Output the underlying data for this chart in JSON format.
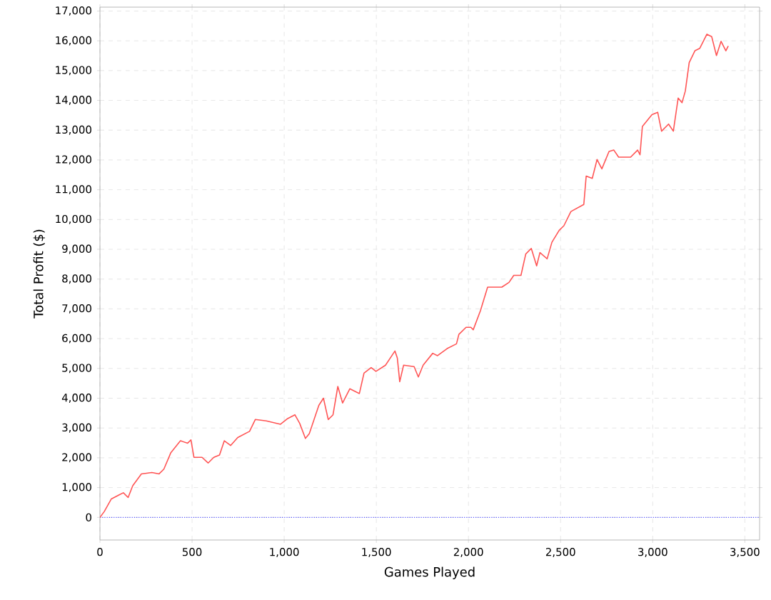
{
  "chart_data": {
    "type": "line",
    "xlabel": "Games Played",
    "ylabel": "Total Profit ($)",
    "xlim": [
      0,
      3580
    ],
    "ylim": [
      -760,
      17130
    ],
    "xticks": [
      0,
      500,
      {
        "value": 1000,
        "label": "1,000"
      },
      {
        "value": 1500,
        "label": "1,500"
      },
      {
        "value": 2000,
        "label": "2,000"
      },
      {
        "value": 2500,
        "label": "2,500"
      },
      {
        "value": 3000,
        "label": "3,000"
      },
      {
        "value": 3500,
        "label": "3,500"
      }
    ],
    "yticks": [
      0,
      {
        "value": 1000,
        "label": "1,000"
      },
      {
        "value": 2000,
        "label": "2,000"
      },
      {
        "value": 3000,
        "label": "3,000"
      },
      {
        "value": 4000,
        "label": "4,000"
      },
      {
        "value": 5000,
        "label": "5,000"
      },
      {
        "value": 6000,
        "label": "6,000"
      },
      {
        "value": 7000,
        "label": "7,000"
      },
      {
        "value": 8000,
        "label": "8,000"
      },
      {
        "value": 9000,
        "label": "9,000"
      },
      {
        "value": 10000,
        "label": "10,000"
      },
      {
        "value": 11000,
        "label": "11,000"
      },
      {
        "value": 12000,
        "label": "12,000"
      },
      {
        "value": 13000,
        "label": "13,000"
      },
      {
        "value": 14000,
        "label": "14,000"
      },
      {
        "value": 15000,
        "label": "15,000"
      },
      {
        "value": 16000,
        "label": "16,000"
      },
      {
        "value": 17000,
        "label": "17,000"
      }
    ],
    "grid": true,
    "line_style": "solid",
    "ref_lines": [
      {
        "axis": "y",
        "value": 0,
        "color": "#5555ff",
        "line_style": "dotted"
      }
    ],
    "series": [
      {
        "color": "#ff5555",
        "x": [
          0,
          23,
          62,
          101,
          127,
          153,
          178,
          225,
          282,
          321,
          347,
          385,
          437,
          476,
          494,
          510,
          554,
          587,
          618,
          649,
          675,
          709,
          748,
          812,
          843,
          903,
          980,
          1019,
          1058,
          1084,
          1115,
          1136,
          1188,
          1213,
          1239,
          1265,
          1291,
          1317,
          1356,
          1408,
          1433,
          1472,
          1498,
          1550,
          1601,
          1614,
          1627,
          1648,
          1705,
          1728,
          1754,
          1806,
          1832,
          1884,
          1935,
          1948,
          1987,
          2013,
          2026,
          2065,
          2104,
          2142,
          2181,
          2220,
          2246,
          2285,
          2311,
          2341,
          2370,
          2388,
          2427,
          2453,
          2492,
          2518,
          2556,
          2626,
          2639,
          2672,
          2698,
          2724,
          2763,
          2789,
          2815,
          2880,
          2918,
          2931,
          2944,
          2996,
          3027,
          3048,
          3086,
          3112,
          3138,
          3159,
          3177,
          3198,
          3229,
          3255,
          3294,
          3320,
          3346,
          3371,
          3397,
          3410
        ],
        "values": [
          0,
          190,
          620,
          745,
          825,
          667,
          1063,
          1460,
          1508,
          1460,
          1619,
          2174,
          2571,
          2492,
          2603,
          2016,
          2016,
          1825,
          2016,
          2095,
          2571,
          2412,
          2682,
          2888,
          3285,
          3237,
          3126,
          3317,
          3444,
          3158,
          2650,
          2809,
          3761,
          4000,
          3285,
          3444,
          4396,
          3840,
          4317,
          4158,
          4840,
          5031,
          4904,
          5110,
          5586,
          5348,
          4555,
          5110,
          5063,
          4714,
          5110,
          5508,
          5428,
          5666,
          5825,
          6143,
          6380,
          6380,
          6300,
          6936,
          7730,
          7730,
          7730,
          7888,
          8126,
          8126,
          8840,
          9030,
          8443,
          8888,
          8680,
          9237,
          9633,
          9792,
          10268,
          10506,
          11460,
          11380,
          12015,
          11700,
          12284,
          12332,
          12093,
          12093,
          12332,
          12173,
          13125,
          13522,
          13600,
          12966,
          13204,
          12966,
          14077,
          13920,
          14315,
          15268,
          15665,
          15744,
          16220,
          16141,
          15506,
          15982,
          15665,
          15824
        ]
      }
    ]
  }
}
